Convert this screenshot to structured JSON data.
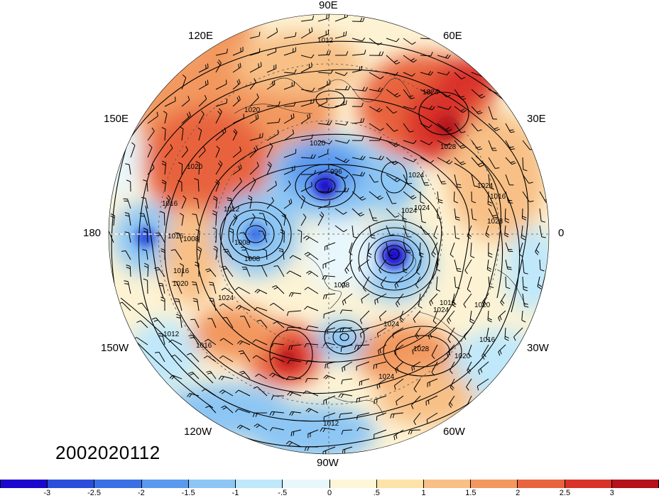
{
  "map": {
    "projection": "north-polar-stereographic",
    "contour_labels": [
      "1012",
      "1020",
      "1024",
      "1016",
      "1024",
      "1020",
      "1016",
      "1028",
      "1024",
      "1016",
      "1012",
      "1016",
      "1020",
      "1024",
      "1012",
      "1016",
      "1020",
      "1008",
      "1008",
      "1024",
      "1024",
      "1028",
      "1024",
      "1020",
      "1016",
      "1024",
      "1028",
      "1020",
      "1016",
      "1024",
      "1012",
      "996",
      "1008",
      "1028"
    ],
    "colors": {
      "land_lines": "#000000",
      "cold_core": "#1a1acc",
      "warm_core": "#c8102e"
    }
  },
  "lon_labels": {
    "n90e": "90E",
    "n120e": "120E",
    "n60e": "60E",
    "n150e": "150E",
    "n30e": "30E",
    "n180": "180",
    "n0": "0",
    "n150w": "150W",
    "n30w": "30W",
    "n120w": "120W",
    "n60w": "60W",
    "n90w": "90W"
  },
  "timestamp": "2002020112",
  "colorbar": {
    "colors": [
      "#1a08cc",
      "#2a4ddc",
      "#3b6fe6",
      "#5a99ee",
      "#8cc6f4",
      "#bfe8fa",
      "#e8f7fc",
      "#fdf6d8",
      "#fde3a8",
      "#f8c086",
      "#f2985f",
      "#e8643e",
      "#d9322a",
      "#b5121b"
    ],
    "tick_labels": [
      "-3",
      "-2.5",
      "-2",
      "-1.5",
      "-1",
      "-.5",
      "0",
      ".5",
      "1",
      "1.5",
      "2",
      "2.5",
      "3"
    ]
  }
}
